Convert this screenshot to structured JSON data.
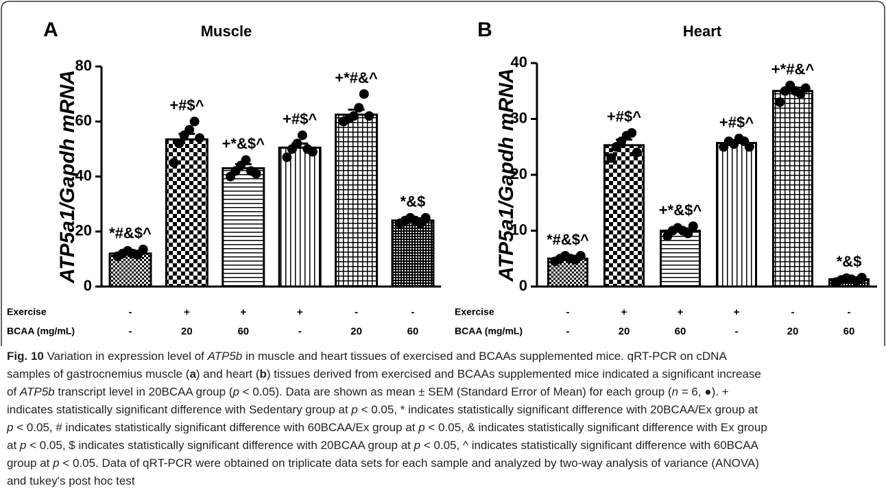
{
  "chart_data": [
    {
      "type": "bar",
      "panel": "A",
      "title": "Muscle",
      "ylabel": "ATP5a1/Gapdh mRNA",
      "values": [
        12,
        53.5,
        43,
        50.5,
        62.5,
        24
      ],
      "errors": [
        1,
        2,
        1.5,
        1.5,
        1.8,
        0.8
      ],
      "annotations": [
        "*#&$^",
        "+#$^",
        "+*&$^",
        "+#$^",
        "+*#&^",
        "*&$"
      ],
      "points": [
        [
          11,
          12,
          13,
          12,
          11.5,
          13.5
        ],
        [
          45,
          52,
          55,
          57,
          60,
          54
        ],
        [
          40,
          42,
          44,
          46,
          42,
          41
        ],
        [
          47,
          50,
          52,
          55,
          50,
          49
        ],
        [
          60,
          61,
          62,
          65,
          70,
          62
        ],
        [
          23,
          24,
          25,
          24,
          23,
          25
        ]
      ],
      "rows": [
        {
          "label": "Exercise",
          "values": [
            "-",
            "+",
            "+",
            "+",
            "-",
            "-"
          ]
        },
        {
          "label": "BCAA (mg/mL)",
          "values": [
            "-",
            "20",
            "60",
            "-",
            "20",
            "60"
          ]
        }
      ],
      "ylim": [
        0,
        80
      ],
      "yticks": [
        0,
        20,
        40,
        60,
        80
      ],
      "color": "#000000"
    },
    {
      "type": "bar",
      "panel": "B",
      "title": "Heart",
      "ylabel": "ATP5a1/Gapdh mRNA",
      "values": [
        5,
        25.3,
        10,
        25.7,
        35,
        1.3
      ],
      "errors": [
        0.5,
        1,
        0.4,
        0.5,
        0.6,
        0.3
      ],
      "annotations": [
        "*#&$^",
        "+#$^",
        "+*&$^",
        "+#$^",
        "+*#&^",
        "*&$"
      ],
      "points": [
        [
          4.5,
          5,
          5.5,
          5,
          4.8,
          5.5
        ],
        [
          23,
          25,
          26,
          27,
          27.5,
          24
        ],
        [
          9,
          10,
          10.5,
          10,
          9.5,
          10.8
        ],
        [
          25,
          26,
          25.5,
          26.5,
          26,
          25
        ],
        [
          33,
          35,
          36,
          35,
          34.5,
          35.5
        ],
        [
          0.8,
          1.2,
          1.5,
          1.3,
          1,
          1.6
        ]
      ],
      "rows": [
        {
          "label": "Exercise",
          "values": [
            "-",
            "+",
            "+",
            "+",
            "-",
            "-"
          ]
        },
        {
          "label": "BCAA (mg/mL)",
          "values": [
            "-",
            "20",
            "60",
            "-",
            "20",
            "60"
          ]
        }
      ],
      "ylim": [
        0,
        40
      ],
      "yticks": [
        0,
        10,
        20,
        30,
        40
      ],
      "color": "#000000"
    }
  ],
  "caption": {
    "lines": [
      [
        {
          "text": "Fig. 10",
          "style": "bold"
        },
        " Variation in expression level of ",
        {
          "text": "ATP5b",
          "style": "italic"
        },
        " in muscle and heart tissues of exercised and BCAAs supplemented mice. qRT-PCR on cDNA"
      ],
      [
        "samples of gastrocnemius muscle (",
        {
          "text": "a",
          "style": "bold"
        },
        ") and heart (",
        {
          "text": "b",
          "style": "bold"
        },
        ") tissues derived from exercised and BCAAs supplemented mice indicated a significant increase"
      ],
      [
        "of ",
        {
          "text": "ATP5b",
          "style": "italic"
        },
        " transcript level in 20BCAA group (",
        {
          "text": "p",
          "style": "italic"
        },
        " < 0.05). Data are shown as mean ± SEM (Standard Error of Mean) for each group (",
        {
          "text": "n",
          "style": "italic"
        },
        " = 6, ●). +"
      ],
      [
        "indicates statistically significant difference with Sedentary group at ",
        {
          "text": "p",
          "style": "italic"
        },
        " < 0.05, * indicates statistically significant difference with 20BCAA/Ex group at"
      ],
      [
        {
          "text": "p",
          "style": "italic"
        },
        " < 0.05, # indicates statistically significant difference with 60BCAA/Ex group at ",
        {
          "text": "p",
          "style": "italic"
        },
        " < 0.05, & indicates statistically significant difference with Ex group"
      ],
      [
        "at ",
        {
          "text": "p",
          "style": "italic"
        },
        " < 0.05, $ indicates statistically significant difference with 20BCAA group at ",
        {
          "text": "p",
          "style": "italic"
        },
        " < 0.05, ^ indicates statistically significant difference with 60BCAA"
      ],
      [
        "group at ",
        {
          "text": "p",
          "style": "italic"
        },
        " < 0.05. Data of qRT-PCR were obtained on triplicate data sets for each sample and analyzed by two-way analysis of variance (ANOVA)"
      ],
      [
        "and tukey's post hoc test"
      ]
    ]
  }
}
